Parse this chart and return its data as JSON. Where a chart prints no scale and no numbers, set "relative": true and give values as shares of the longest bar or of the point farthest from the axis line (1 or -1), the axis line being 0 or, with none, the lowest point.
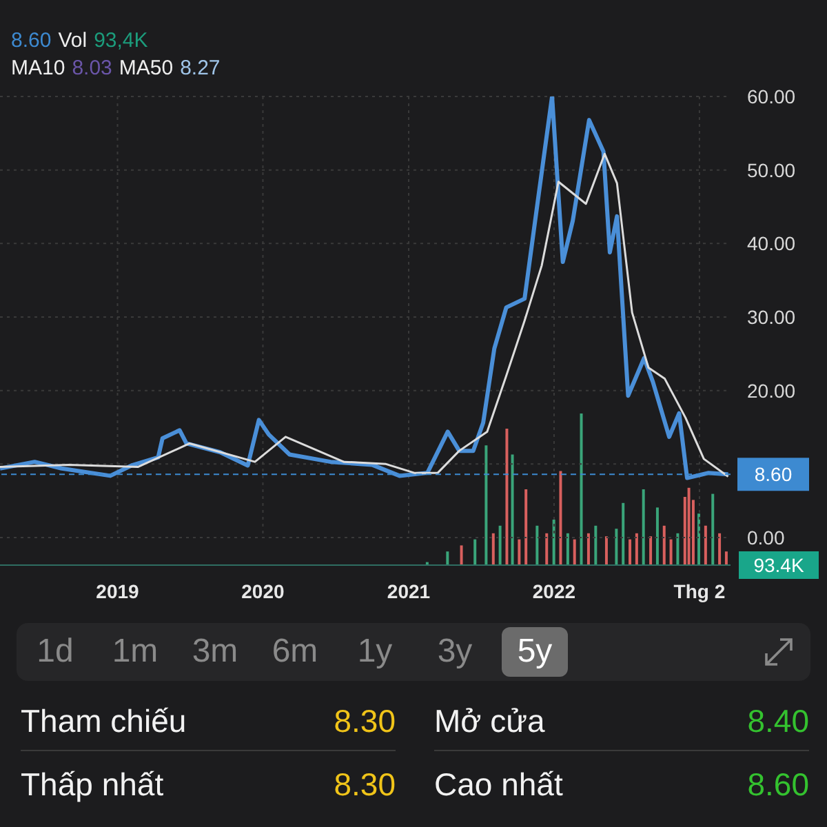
{
  "chart_data": [
    {
      "type": "line",
      "xlim": [
        "2018-03-12",
        "2023-03-20"
      ],
      "ylim": [
        0,
        60
      ],
      "xticks": [
        {
          "value": "2019-01-01",
          "label": "2019"
        },
        {
          "value": "2020-01-01",
          "label": "2020"
        },
        {
          "value": "2021-01-01",
          "label": "2021"
        },
        {
          "value": "2022-01-01",
          "label": "2022"
        },
        {
          "value": "2023-01-01",
          "label": "Thg 2"
        }
      ],
      "yticks": [
        {
          "value": 0,
          "label": "0.00"
        },
        {
          "value": 10,
          "label": null
        },
        {
          "value": 20,
          "label": "20.00"
        },
        {
          "value": 30,
          "label": "30.00"
        },
        {
          "value": 40,
          "label": "40.00"
        },
        {
          "value": 50,
          "label": "50.00"
        },
        {
          "value": 60,
          "label": "60.00"
        }
      ],
      "grid": true,
      "marker": "none",
      "line_style": "solid",
      "series": [
        {
          "color": "#4a8fd8",
          "x": [
            "2018-03-12",
            "2018-06-07",
            "2018-08-14",
            "2018-12-14",
            "2019-02-05",
            "2019-04-13",
            "2019-04-24",
            "2019-06-06",
            "2019-06-23",
            "2019-09-16",
            "2019-11-24",
            "2019-12-22",
            "2020-01-16",
            "2020-03-08",
            "2020-06-19",
            "2020-10-01",
            "2020-12-09",
            "2021-02-17",
            "2021-04-09",
            "2021-05-08",
            "2021-06-12",
            "2021-07-07",
            "2021-08-04",
            "2021-09-03",
            "2021-10-19",
            "2021-11-24",
            "2021-12-27",
            "2022-01-23",
            "2022-02-17",
            "2022-03-30",
            "2022-05-05",
            "2022-05-21",
            "2022-06-08",
            "2022-07-06",
            "2022-08-15",
            "2022-09-06",
            "2022-10-17",
            "2022-11-11",
            "2022-12-01",
            "2023-01-24",
            "2023-03-14"
          ],
          "values": [
            9.4,
            10.3,
            9.4,
            8.4,
            9.8,
            10.9,
            13.5,
            14.6,
            12.8,
            11.6,
            9.8,
            16,
            14,
            11.3,
            10.3,
            9.9,
            8.4,
            8.8,
            14.4,
            11.8,
            11.8,
            15.6,
            25.7,
            31.3,
            32.5,
            46.9,
            60,
            37.5,
            43.1,
            56.8,
            52.5,
            38.8,
            43.7,
            19.3,
            24.4,
            21.2,
            13.7,
            16.9,
            8.1,
            8.8,
            8.6
          ]
        },
        {
          "color": "#dcdcdc",
          "x": [
            "2018-03-12",
            "2018-09-01",
            "2019-02-21",
            "2019-07-01",
            "2019-12-12",
            "2020-02-27",
            "2020-07-22",
            "2020-11-05",
            "2021-01-15",
            "2021-03-15",
            "2021-05-08",
            "2021-07-17",
            "2021-09-03",
            "2021-10-19",
            "2021-12-01",
            "2022-01-12",
            "2022-03-22",
            "2022-05-08",
            "2022-06-08",
            "2022-07-16",
            "2022-08-26",
            "2022-10-06",
            "2022-11-27",
            "2023-01-12",
            "2023-03-14"
          ],
          "values": [
            9.6,
            9.9,
            9.6,
            12.8,
            10.3,
            13.7,
            10.3,
            10,
            8.8,
            8.8,
            11.8,
            14.4,
            22,
            29.5,
            37,
            48.4,
            45.4,
            52.2,
            48.2,
            30.6,
            23.1,
            21.6,
            16.3,
            10.7,
            8.3
          ]
        }
      ],
      "ref_lines": [
        {
          "axis": "y",
          "value": 8.6,
          "label": "8.60",
          "color": "#3d8ad1",
          "line_style": "dashed"
        }
      ],
      "annotations": [
        "8.60",
        "Vol",
        "93,4K",
        "MA10",
        "8.03",
        "MA50",
        "8.27",
        "1d",
        "1m",
        "3m",
        "6m",
        "1y",
        "3y",
        "5y",
        "Tham chiếu",
        "8.30",
        "Mở cửa",
        "8.40",
        "Thấp nhất",
        "8.30",
        "Cao nhất",
        "8.60"
      ]
    },
    {
      "type": "bar",
      "relative": true,
      "xlim": [
        "2018-03-12",
        "2023-03-20"
      ],
      "x": [
        "2021-02-18",
        "2021-04-10",
        "2021-05-15",
        "2021-06-18",
        "2021-07-16",
        "2021-08-03",
        "2021-08-20",
        "2021-09-06",
        "2021-09-20",
        "2021-10-07",
        "2021-10-24",
        "2021-11-21",
        "2021-12-15",
        "2022-01-02",
        "2022-01-19",
        "2022-02-06",
        "2022-02-23",
        "2022-03-12",
        "2022-03-30",
        "2022-04-17",
        "2022-05-14",
        "2022-06-08",
        "2022-06-25",
        "2022-07-12",
        "2022-07-29",
        "2022-08-15",
        "2022-09-02",
        "2022-09-19",
        "2022-10-06",
        "2022-10-23",
        "2022-11-09",
        "2022-11-27",
        "2022-12-07",
        "2022-12-18",
        "2023-01-01",
        "2023-01-18",
        "2023-02-05",
        "2023-02-22",
        "2023-03-11"
      ],
      "values": [
        0.02,
        0.09,
        0.13,
        0.17,
        0.79,
        0.21,
        0.26,
        0.9,
        0.73,
        0.17,
        0.5,
        0.26,
        0.21,
        0.3,
        0.62,
        0.21,
        0.17,
        1,
        0.21,
        0.26,
        0.19,
        0.24,
        0.41,
        0.17,
        0.21,
        0.5,
        0.19,
        0.38,
        0.26,
        0.17,
        0.21,
        0.45,
        0.51,
        0.43,
        0.34,
        0.26,
        0.47,
        0.21,
        0.09
      ],
      "colors": [
        "#3aa57a",
        "#3aa57a",
        "#d9605e",
        "#3aa57a",
        "#3aa57a",
        "#d9605e",
        "#3aa57a",
        "#d9605e",
        "#3aa57a",
        "#d9605e",
        "#d9605e",
        "#3aa57a",
        "#d9605e",
        "#3aa57a",
        "#d9605e",
        "#3aa57a",
        "#d9605e",
        "#3aa57a",
        "#d9605e",
        "#3aa57a",
        "#d9605e",
        "#3aa57a",
        "#3aa57a",
        "#d9605e",
        "#d9605e",
        "#3aa57a",
        "#d9605e",
        "#3aa57a",
        "#d9605e",
        "#d9605e",
        "#3aa57a",
        "#d9605e",
        "#d9605e",
        "#d9605e",
        "#3aa57a",
        "#d9605e",
        "#3aa57a",
        "#d9605e",
        "#d9605e"
      ],
      "annotations": [
        "93.4K"
      ]
    }
  ]
}
